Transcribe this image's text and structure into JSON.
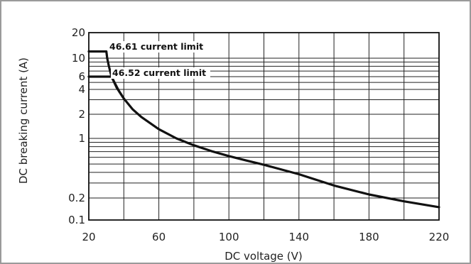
{
  "chart_data": {
    "type": "line",
    "title": "",
    "xlabel": "DC voltage (V)",
    "ylabel": "DC breaking current (A)",
    "xlim": [
      20,
      220
    ],
    "ylim": [
      0.1,
      20
    ],
    "yscale": "log",
    "grid": true,
    "x_ticks": [
      20,
      60,
      100,
      140,
      180,
      220
    ],
    "y_ticks": [
      0.1,
      0.2,
      1,
      2,
      4,
      6,
      10,
      20
    ],
    "x_tick_labels": [
      "20",
      "60",
      "100",
      "140",
      "180",
      "220"
    ],
    "y_tick_labels": [
      "0.1",
      "0.2",
      "1",
      "2",
      "4",
      "6",
      "10",
      "20"
    ],
    "series": [
      {
        "name": "46.61 current limit",
        "x": [
          20,
          30,
          30.5,
          31.5,
          33,
          35,
          37,
          40
        ],
        "y": [
          12,
          12,
          10,
          8,
          6,
          4.8,
          3.9,
          3.1
        ]
      },
      {
        "name": "46.52 current limit",
        "x": [
          20,
          28,
          30,
          33,
          36,
          40,
          45,
          50,
          60,
          70,
          80,
          90,
          100,
          110,
          120,
          140,
          160,
          180,
          200,
          220
        ],
        "y": [
          6,
          6,
          6,
          6,
          4.2,
          3.1,
          2.3,
          1.85,
          1.3,
          1.0,
          0.83,
          0.71,
          0.62,
          0.55,
          0.49,
          0.38,
          0.28,
          0.22,
          0.18,
          0.15
        ]
      }
    ],
    "annotations": [
      "46.61 current limit",
      "46.52 current limit"
    ]
  }
}
